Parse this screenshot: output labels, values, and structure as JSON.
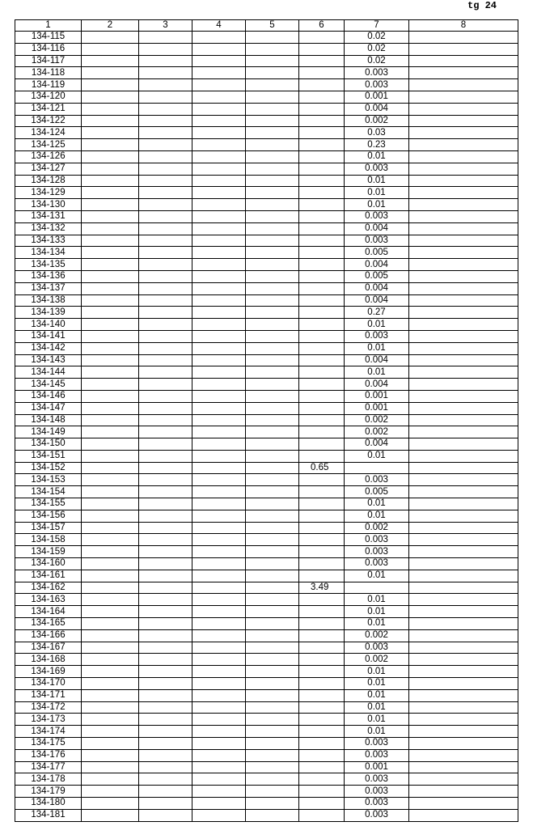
{
  "page_label": "tg 24",
  "columns": [
    "1",
    "2",
    "3",
    "4",
    "5",
    "6",
    "7",
    "8"
  ],
  "rows": [
    {
      "id": "134-115",
      "c7": "0.02"
    },
    {
      "id": "134-116",
      "c7": "0.02"
    },
    {
      "id": "134-117",
      "c7": "0.02"
    },
    {
      "id": "134-118",
      "c7": "0.003"
    },
    {
      "id": "134-119",
      "c7": "0.003"
    },
    {
      "id": "134-120",
      "c7": "0.001"
    },
    {
      "id": "134-121",
      "c7": "0.004"
    },
    {
      "id": "134-122",
      "c7": "0.002"
    },
    {
      "id": "134-124",
      "c7": "0.03"
    },
    {
      "id": "134-125",
      "c7": "0.23"
    },
    {
      "id": "134-126",
      "c7": "0.01"
    },
    {
      "id": "134-127",
      "c7": "0.003"
    },
    {
      "id": "134-128",
      "c7": "0.01"
    },
    {
      "id": "134-129",
      "c7": "0.01"
    },
    {
      "id": "134-130",
      "c7": "0.01"
    },
    {
      "id": "134-131",
      "c7": "0.003"
    },
    {
      "id": "134-132",
      "c7": "0.004"
    },
    {
      "id": "134-133",
      "c7": "0.003"
    },
    {
      "id": "134-134",
      "c7": "0.005"
    },
    {
      "id": "134-135",
      "c7": "0.004"
    },
    {
      "id": "134-136",
      "c7": "0.005"
    },
    {
      "id": "134-137",
      "c7": "0.004"
    },
    {
      "id": "134-138",
      "c7": "0.004"
    },
    {
      "id": "134-139",
      "c7": "0.27"
    },
    {
      "id": "134-140",
      "c7": "0.01"
    },
    {
      "id": "134-141",
      "c7": "0.003"
    },
    {
      "id": "134-142",
      "c7": "0.01"
    },
    {
      "id": "134-143",
      "c7": "0.004"
    },
    {
      "id": "134-144",
      "c7": "0.01"
    },
    {
      "id": "134-145",
      "c7": "0.004"
    },
    {
      "id": "134-146",
      "c7": "0.001"
    },
    {
      "id": "134-147",
      "c7": "0.001"
    },
    {
      "id": "134-148",
      "c7": "0.002"
    },
    {
      "id": "134-149",
      "c7": "0.002"
    },
    {
      "id": "134-150",
      "c7": "0.004"
    },
    {
      "id": "134-151",
      "c7": "0.01"
    },
    {
      "id": "134-152",
      "c6": "0.65"
    },
    {
      "id": "134-153",
      "c7": "0.003"
    },
    {
      "id": "134-154",
      "c7": "0.005"
    },
    {
      "id": "134-155",
      "c7": "0.01"
    },
    {
      "id": "134-156",
      "c7": "0.01"
    },
    {
      "id": "134-157",
      "c7": "0.002"
    },
    {
      "id": "134-158",
      "c7": "0.003"
    },
    {
      "id": "134-159",
      "c7": "0.003"
    },
    {
      "id": "134-160",
      "c7": "0.003"
    },
    {
      "id": "134-161",
      "c7": "0.01"
    },
    {
      "id": "134-162",
      "c6": "3.49"
    },
    {
      "id": "134-163",
      "c7": "0.01"
    },
    {
      "id": "134-164",
      "c7": "0.01"
    },
    {
      "id": "134-165",
      "c7": "0.01"
    },
    {
      "id": "134-166",
      "c7": "0.002"
    },
    {
      "id": "134-167",
      "c7": "0.003"
    },
    {
      "id": "134-168",
      "c7": "0.002"
    },
    {
      "id": "134-169",
      "c7": "0.01"
    },
    {
      "id": "134-170",
      "c7": "0.01"
    },
    {
      "id": "134-171",
      "c7": "0.01"
    },
    {
      "id": "134-172",
      "c7": "0.01"
    },
    {
      "id": "134-173",
      "c7": "0.01"
    },
    {
      "id": "134-174",
      "c7": "0.01"
    },
    {
      "id": "134-175",
      "c7": "0.003"
    },
    {
      "id": "134-176",
      "c7": "0.003"
    },
    {
      "id": "134-177",
      "c7": "0.001"
    },
    {
      "id": "134-178",
      "c7": "0.003"
    },
    {
      "id": "134-179",
      "c7": "0.003"
    },
    {
      "id": "134-180",
      "c7": "0.003"
    },
    {
      "id": "134-181",
      "c7": "0.003"
    }
  ]
}
